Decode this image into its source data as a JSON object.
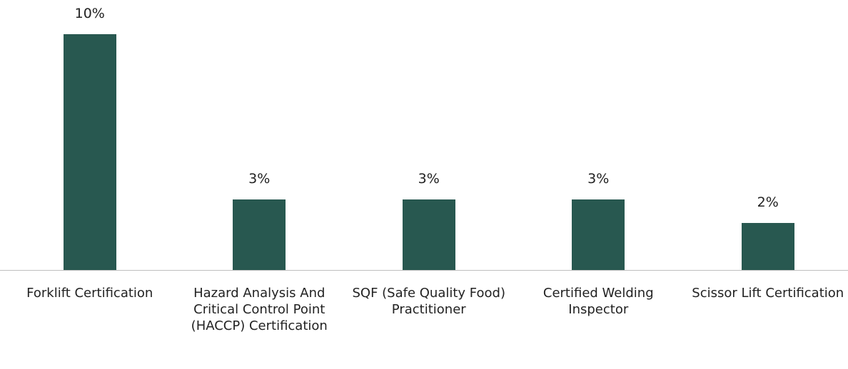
{
  "chart_data": {
    "type": "bar",
    "categories": [
      "Forklift Certification",
      "Hazard Analysis And Critical Control Point (HACCP) Certification",
      "SQF (Safe Quality Food) Practitioner",
      "Certified Welding Inspector",
      "Scissor Lift Certification"
    ],
    "values": [
      10,
      3,
      3,
      3,
      2
    ],
    "value_labels": [
      "10%",
      "3%",
      "3%",
      "3%",
      "2%"
    ],
    "color": "#285850"
  }
}
